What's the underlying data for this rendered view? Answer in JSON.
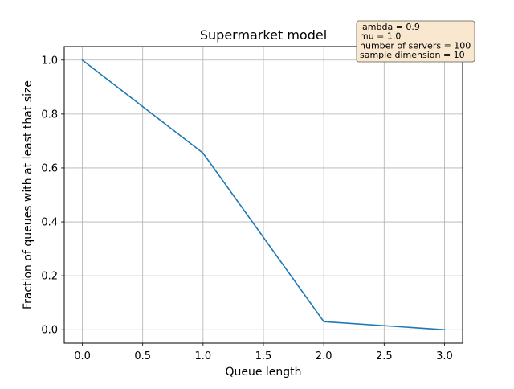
{
  "chart_data": {
    "type": "line",
    "title": "Supermarket model",
    "xlabel": "Queue length",
    "ylabel": "Fraction of queues with at least that size",
    "x": [
      0,
      1,
      2,
      3
    ],
    "series": [
      {
        "values": [
          1.0,
          0.655,
          0.03,
          0.0
        ],
        "color": "#1f77b4"
      }
    ],
    "xlim": [
      -0.15,
      3.15
    ],
    "ylim": [
      -0.05,
      1.05
    ],
    "xticks": [
      0.0,
      0.5,
      1.0,
      1.5,
      2.0,
      2.5,
      3.0
    ],
    "xtick_labels": [
      "0.0",
      "0.5",
      "1.0",
      "1.5",
      "2.0",
      "2.5",
      "3.0"
    ],
    "yticks": [
      0.0,
      0.2,
      0.4,
      0.6,
      0.8,
      1.0
    ],
    "ytick_labels": [
      "0.0",
      "0.2",
      "0.4",
      "0.6",
      "0.8",
      "1.0"
    ],
    "grid": true,
    "annotation": {
      "lines": [
        "lambda = 0.9",
        "mu = 1.0",
        "number of servers = 100",
        "sample dimension = 10"
      ],
      "placement": "top-right",
      "box_fill": "#f9e8cf",
      "box_edge": "#7f7f6f"
    }
  }
}
